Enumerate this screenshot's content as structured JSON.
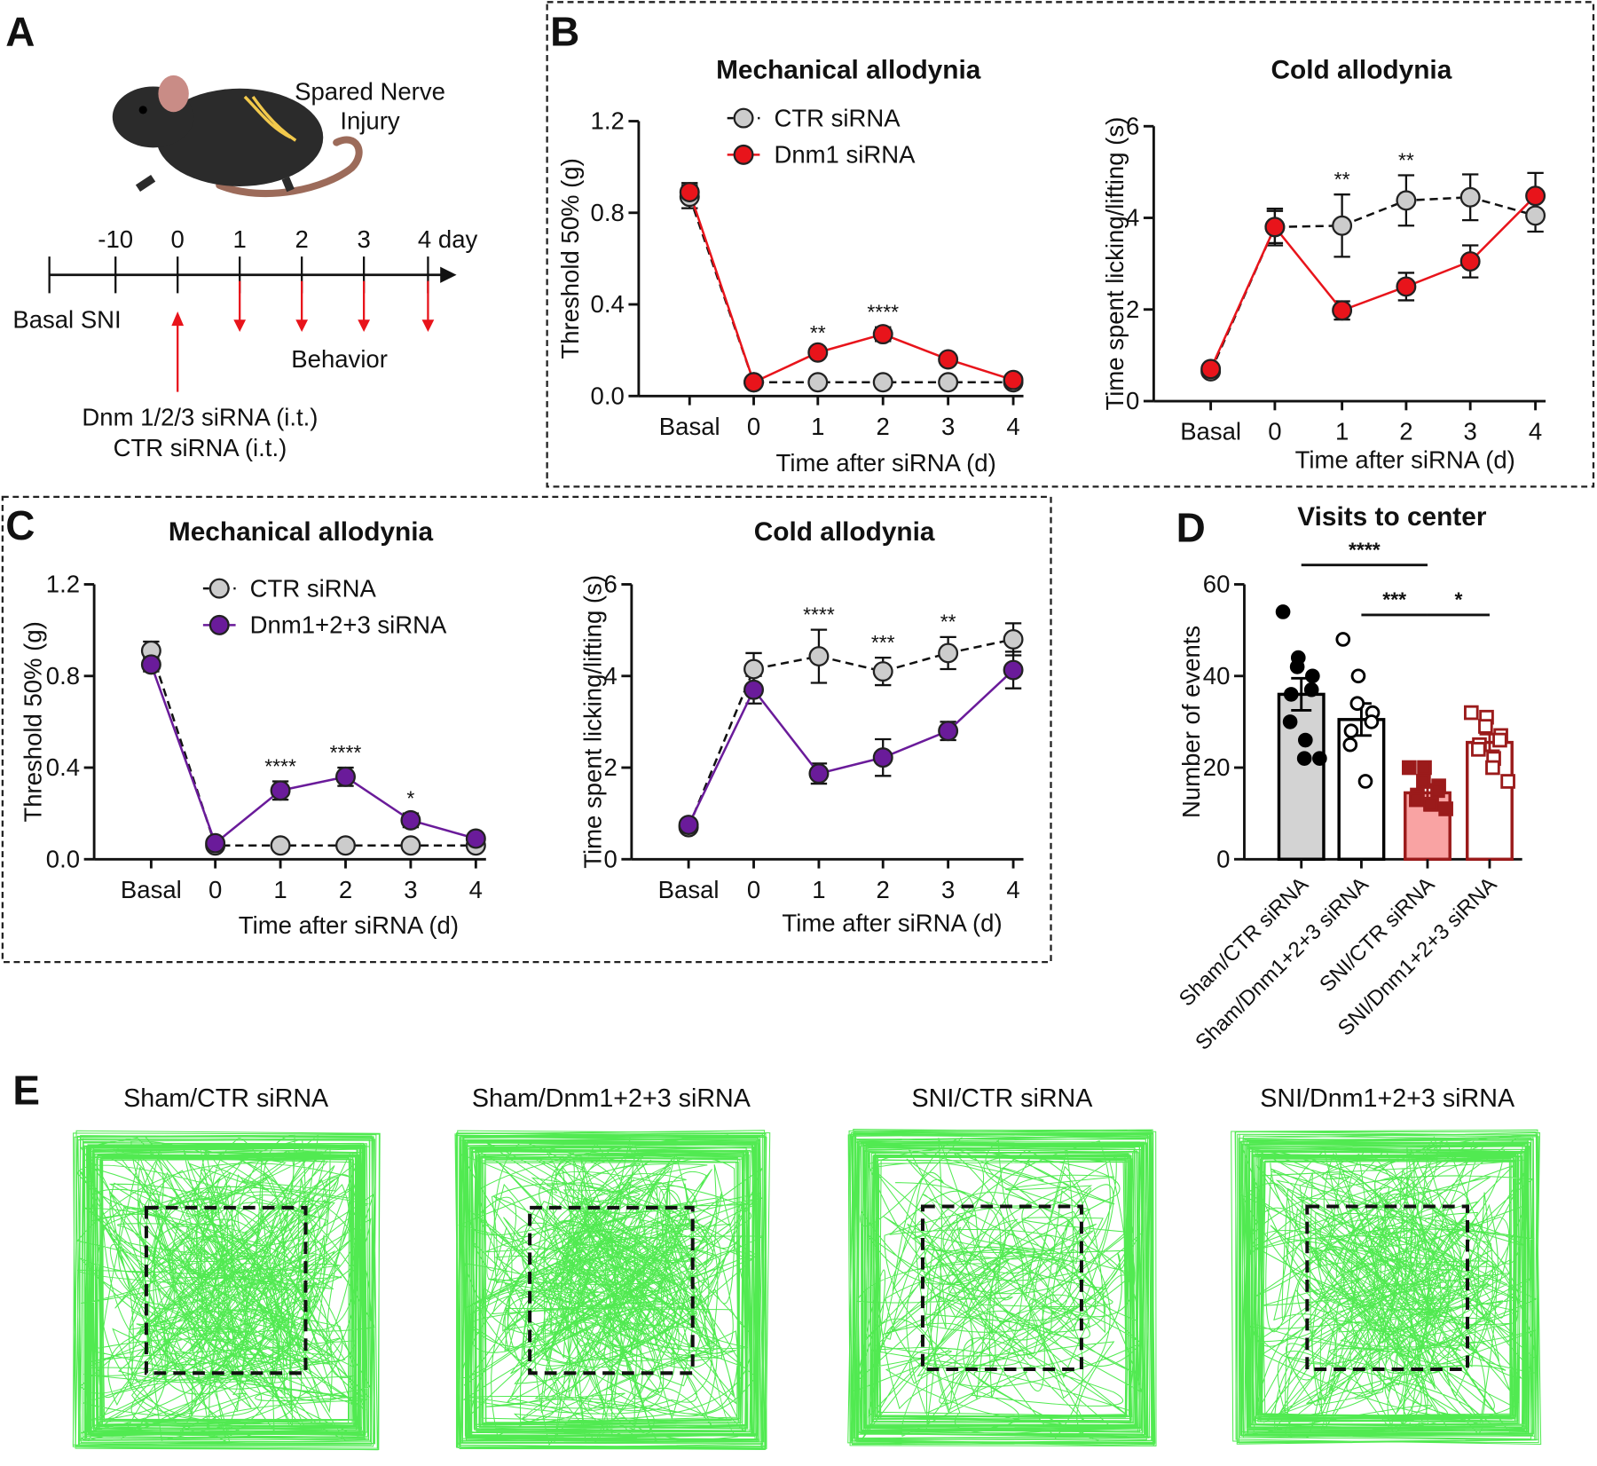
{
  "panel_labels": [
    "A",
    "B",
    "C",
    "D",
    "E"
  ],
  "timeline": {
    "injury": [
      "Spared Nerve",
      "Injury"
    ],
    "ticks": [
      "-10",
      "0",
      "1",
      "2",
      "3",
      "4 day"
    ],
    "basal": "Basal SNI",
    "behavior": "Behavior",
    "treatment": [
      "Dnm 1/2/3 siRNA (i.t.)",
      "CTR siRNA (i.t.)"
    ]
  },
  "chart_data": [
    {
      "type": "line",
      "title": "Mechanical allodynia",
      "xlabel": "Time after siRNA (d)",
      "ylabel": "Threshold 50% (g)",
      "categories": [
        "Basal",
        "0",
        "1",
        "2",
        "3",
        "4"
      ],
      "ylim": [
        0,
        1.2
      ],
      "yticks": [
        {
          "value": 0,
          "label": "0.0"
        },
        0.4,
        0.8,
        1.2
      ],
      "legend": "upper right",
      "series": [
        {
          "name": "CTR siRNA",
          "color": "#cccccc",
          "dashed": true,
          "values": [
            0.87,
            0.06,
            0.06,
            0.06,
            0.06,
            0.06
          ],
          "errors": [
            0.05,
            0.01,
            0.01,
            0.01,
            0.01,
            0.01
          ]
        },
        {
          "name": "Dnm1 siRNA",
          "color": "#e8141b",
          "dashed": false,
          "values": [
            0.89,
            0.06,
            0.19,
            0.27,
            0.16,
            0.07
          ],
          "errors": [
            0.04,
            0.01,
            0.02,
            0.03,
            0.02,
            0.01
          ]
        }
      ],
      "annotations": [
        {
          "text": "**",
          "at": "1"
        },
        {
          "text": "****",
          "at": "2"
        }
      ]
    },
    {
      "type": "line",
      "title": "Cold allodynia",
      "xlabel": "Time after siRNA (d)",
      "ylabel": "Time spent licking/lifting (s)",
      "categories": [
        "Basal",
        "0",
        "1",
        "2",
        "3",
        "4"
      ],
      "ylim": [
        0,
        6
      ],
      "yticks": [
        0,
        2,
        4,
        6
      ],
      "series": [
        {
          "name": "CTR siRNA",
          "color": "#cccccc",
          "dashed": true,
          "values": [
            0.65,
            3.8,
            3.83,
            4.38,
            4.45,
            4.05
          ],
          "errors": [
            0.1,
            0.35,
            0.68,
            0.55,
            0.5,
            0.35
          ]
        },
        {
          "name": "Dnm1 siRNA",
          "color": "#e8141b",
          "dashed": false,
          "values": [
            0.7,
            3.8,
            1.98,
            2.5,
            3.05,
            4.48
          ],
          "errors": [
            0.1,
            0.4,
            0.2,
            0.3,
            0.35,
            0.5
          ]
        }
      ],
      "annotations": [
        {
          "text": "**",
          "at": "1"
        },
        {
          "text": "**",
          "at": "2"
        }
      ]
    },
    {
      "type": "line",
      "title": "Mechanical allodynia",
      "xlabel": "Time after siRNA (d)",
      "ylabel": "Threshold 50% (g)",
      "categories": [
        "Basal",
        "0",
        "1",
        "2",
        "3",
        "4"
      ],
      "ylim": [
        0,
        1.2
      ],
      "yticks": [
        {
          "value": 0,
          "label": "0.0"
        },
        0.4,
        0.8,
        1.2
      ],
      "legend": "upper right",
      "series": [
        {
          "name": "CTR siRNA",
          "color": "#cccccc",
          "dashed": true,
          "values": [
            0.91,
            0.06,
            0.06,
            0.06,
            0.06,
            0.06
          ],
          "errors": [
            0.04,
            0.01,
            0.01,
            0.01,
            0.01,
            0.01
          ]
        },
        {
          "name": "Dnm1+2+3 siRNA",
          "color": "#6a1b9a",
          "dashed": false,
          "values": [
            0.85,
            0.07,
            0.3,
            0.36,
            0.17,
            0.09
          ],
          "errors": [
            0.03,
            0.01,
            0.04,
            0.04,
            0.03,
            0.01
          ]
        }
      ],
      "annotations": [
        {
          "text": "****",
          "at": "1"
        },
        {
          "text": "****",
          "at": "2"
        },
        {
          "text": "*",
          "at": "3"
        }
      ]
    },
    {
      "type": "line",
      "title": "Cold allodynia",
      "xlabel": "Time after siRNA (d)",
      "ylabel": "Time spent licking/lifting (s)",
      "categories": [
        "Basal",
        "0",
        "1",
        "2",
        "3",
        "4"
      ],
      "ylim": [
        0,
        6
      ],
      "yticks": [
        0,
        2,
        4,
        6
      ],
      "series": [
        {
          "name": "CTR siRNA",
          "color": "#cccccc",
          "dashed": true,
          "values": [
            0.7,
            4.15,
            4.43,
            4.1,
            4.5,
            4.8
          ],
          "errors": [
            0.1,
            0.35,
            0.58,
            0.3,
            0.35,
            0.35
          ]
        },
        {
          "name": "Dnm1+2+3 siRNA",
          "color": "#6a1b9a",
          "dashed": false,
          "values": [
            0.75,
            3.7,
            1.87,
            2.22,
            2.8,
            4.13
          ],
          "errors": [
            0.1,
            0.3,
            0.22,
            0.4,
            0.2,
            0.4
          ]
        }
      ],
      "annotations": [
        {
          "text": "****",
          "at": "1"
        },
        {
          "text": "***",
          "at": "2"
        },
        {
          "text": "**",
          "at": "3"
        }
      ]
    },
    {
      "type": "bar",
      "title": "Visits to center",
      "ylabel": "Number of events",
      "categories": [
        "Sham/CTR siRNA",
        "Sham/Dnm1+2+3 siRNA",
        "SNI/CTR siRNA",
        "SNI/Dnm1+2+3 siRNA"
      ],
      "values": [
        36,
        30.5,
        14.5,
        25.5
      ],
      "errors": [
        3.5,
        3.5,
        1.2,
        1.8
      ],
      "colors": [
        "#d3d3d3",
        "#ffffff",
        "#f9a3a3",
        "#ffffff"
      ],
      "edge_colors": [
        "#000000",
        "#000000",
        "#9b1b1b",
        "#9b1b1b"
      ],
      "point_markers": [
        "circle",
        "circle-open",
        "square",
        "square-open"
      ],
      "points": [
        [
          54,
          44,
          42,
          40,
          37,
          36,
          30,
          26,
          22,
          22
        ],
        [
          48,
          40,
          34,
          32,
          30,
          28,
          25,
          17
        ],
        [
          20,
          20,
          17,
          16,
          15,
          14,
          13,
          12,
          12,
          11
        ],
        [
          32,
          31,
          29,
          27,
          26,
          25,
          24,
          22,
          20,
          17
        ]
      ],
      "ylim": [
        0,
        60
      ],
      "yticks": [
        0,
        20,
        40,
        60
      ],
      "comparisons": [
        {
          "text": "****",
          "from": "Sham/CTR siRNA",
          "to": "SNI/CTR siRNA"
        },
        {
          "text": "***",
          "from": "Sham/Dnm1+2+3 siRNA",
          "to": "SNI/CTR siRNA"
        },
        {
          "text": "*",
          "from": "SNI/CTR siRNA",
          "to": "SNI/Dnm1+2+3 siRNA"
        }
      ]
    }
  ],
  "tracks": {
    "titles": [
      "Sham/CTR siRNA",
      "Sham/Dnm1+2+3 siRNA",
      "SNI/CTR siRNA",
      "SNI/Dnm1+2+3 siRNA"
    ]
  }
}
